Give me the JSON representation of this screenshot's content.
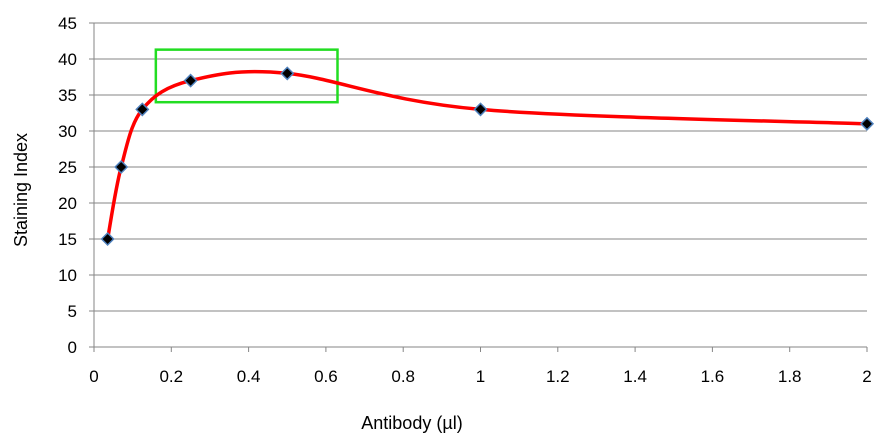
{
  "chart_data": {
    "type": "line",
    "title": "",
    "xlabel": "Antibody (µl)",
    "ylabel": "Staining Index",
    "xlim": [
      0,
      2
    ],
    "ylim": [
      0,
      45
    ],
    "x_ticks": [
      "0",
      "0.2",
      "0.4",
      "0.6",
      "0.8",
      "1",
      "1.2",
      "1.4",
      "1.6",
      "1.8",
      "2"
    ],
    "y_ticks": [
      "0",
      "5",
      "10",
      "15",
      "20",
      "25",
      "30",
      "35",
      "40",
      "45"
    ],
    "grid": "horizontal",
    "legend": "none",
    "smoothed": true,
    "series": [
      {
        "x": [
          0.0352,
          0.0703,
          0.125,
          0.25,
          0.5,
          1,
          2
        ],
        "y": [
          15,
          25,
          33,
          37,
          38,
          33,
          31
        ]
      }
    ],
    "line_color": "#ff0000",
    "marker_color": "#000000",
    "marker_edge_color": "#4f81bd",
    "highlight_box": {
      "x": [
        0.16,
        0.63
      ],
      "y": [
        34,
        41.3
      ],
      "color": "#22dd22"
    }
  }
}
